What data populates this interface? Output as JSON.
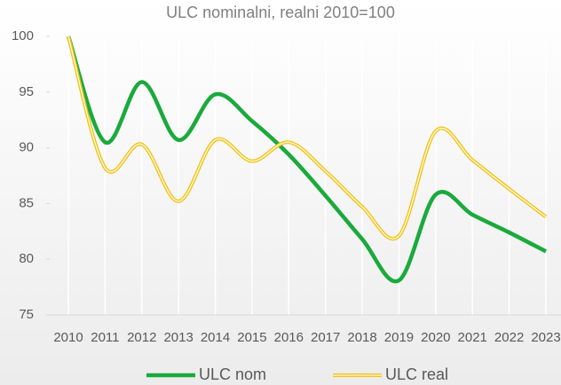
{
  "chart_data": {
    "type": "line",
    "title": "ULC nominalni, realni 2010=100",
    "categories": [
      "2010",
      "2011",
      "2012",
      "2013",
      "2014",
      "2015",
      "2016",
      "2017",
      "2018",
      "2019",
      "2020",
      "2021",
      "2022",
      "2023"
    ],
    "series": [
      {
        "name": "ULC nom",
        "color": "#1aaa3c",
        "values": [
          100,
          90.5,
          95.9,
          90.7,
          94.8,
          92.4,
          89.4,
          85.7,
          81.8,
          78.1,
          85.8,
          84.0,
          82.4,
          80.7
        ]
      },
      {
        "name": "ULC real",
        "color": "#f0c419",
        "values": [
          100,
          88.2,
          90.3,
          85.2,
          90.7,
          88.8,
          90.5,
          87.9,
          84.7,
          82.1,
          91.5,
          88.9,
          86.3,
          83.8
        ]
      }
    ],
    "ylim": [
      75,
      100
    ],
    "yticks": [
      75,
      80,
      85,
      90,
      95,
      100
    ],
    "grid": true,
    "legend": "bottom"
  }
}
